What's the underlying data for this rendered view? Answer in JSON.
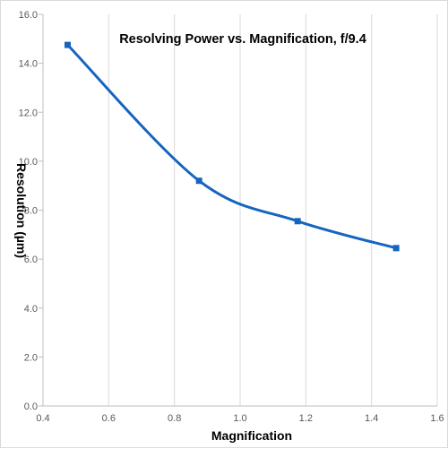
{
  "chart_data": {
    "type": "line",
    "title": "Resolving Power vs. Magnification, f/9.4",
    "xlabel": "Magnification",
    "ylabel": "Resolution (µm)",
    "xlim": [
      0.4,
      1.6
    ],
    "ylim": [
      0.0,
      16.0
    ],
    "xticks": [
      "0.4",
      "0.6",
      "0.8",
      "1.0",
      "1.2",
      "1.4",
      "1.6"
    ],
    "yticks": [
      "0.0",
      "2.0",
      "4.0",
      "6.0",
      "8.0",
      "10.0",
      "12.0",
      "14.0",
      "16.0"
    ],
    "grid": "vertical",
    "legend": "none",
    "line_color": "#1565c0",
    "series": [
      {
        "x": [
          0.475,
          0.875,
          1.175,
          1.475
        ],
        "y": [
          14.75,
          9.2,
          7.55,
          6.45
        ]
      }
    ]
  }
}
